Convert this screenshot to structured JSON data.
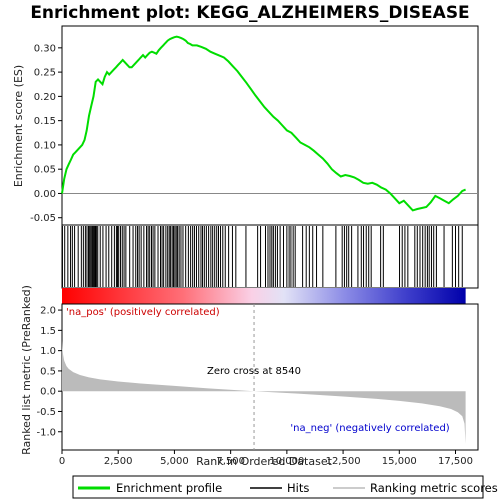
{
  "chart_data": {
    "type": "line",
    "title": "Enrichment plot: KEGG_ALZHEIMERS_DISEASE",
    "top_panel": {
      "ylabel": "Enrichment score (ES)",
      "ylim": [
        -0.065,
        0.345
      ],
      "yticks": [
        -0.05,
        0.0,
        0.05,
        0.1,
        0.15,
        0.2,
        0.25,
        0.3
      ],
      "ytick_labels": [
        "-0.05",
        "0.00",
        "0.05",
        "0.10",
        "0.15",
        "0.20",
        "0.25",
        "0.30"
      ],
      "series": [
        {
          "name": "Enrichment profile",
          "color": "#00dd00",
          "x": [
            0,
            100,
            200,
            300,
            400,
            500,
            600,
            700,
            800,
            900,
            1000,
            1100,
            1200,
            1300,
            1400,
            1500,
            1600,
            1700,
            1800,
            1900,
            2000,
            2100,
            2200,
            2300,
            2400,
            2500,
            2600,
            2700,
            2800,
            2900,
            3000,
            3100,
            3200,
            3300,
            3400,
            3500,
            3600,
            3700,
            3800,
            3900,
            4000,
            4100,
            4200,
            4300,
            4400,
            4500,
            4600,
            4700,
            4800,
            4900,
            5000,
            5100,
            5200,
            5300,
            5400,
            5500,
            5600,
            5700,
            5800,
            5900,
            6000,
            6200,
            6400,
            6600,
            6800,
            7000,
            7200,
            7400,
            7600,
            7800,
            8000,
            8200,
            8400,
            8600,
            8800,
            9000,
            9200,
            9400,
            9600,
            9800,
            10000,
            10200,
            10400,
            10600,
            10800,
            11000,
            11200,
            11400,
            11600,
            11800,
            12000,
            12200,
            12400,
            12600,
            12800,
            13000,
            13200,
            13400,
            13600,
            13800,
            14000,
            14200,
            14400,
            14600,
            14800,
            15000,
            15200,
            15400,
            15600,
            15800,
            16000,
            16200,
            16400,
            16600,
            16800,
            17000,
            17200,
            17400,
            17600,
            17800,
            17950
          ],
          "y": [
            0.0,
            0.03,
            0.05,
            0.06,
            0.07,
            0.08,
            0.085,
            0.09,
            0.095,
            0.1,
            0.11,
            0.13,
            0.16,
            0.18,
            0.2,
            0.23,
            0.235,
            0.23,
            0.225,
            0.24,
            0.25,
            0.245,
            0.25,
            0.255,
            0.26,
            0.265,
            0.27,
            0.275,
            0.27,
            0.265,
            0.26,
            0.26,
            0.265,
            0.27,
            0.275,
            0.28,
            0.285,
            0.28,
            0.285,
            0.29,
            0.292,
            0.29,
            0.288,
            0.295,
            0.3,
            0.305,
            0.31,
            0.315,
            0.318,
            0.32,
            0.322,
            0.323,
            0.322,
            0.32,
            0.318,
            0.315,
            0.31,
            0.308,
            0.305,
            0.305,
            0.305,
            0.302,
            0.298,
            0.292,
            0.288,
            0.284,
            0.28,
            0.272,
            0.262,
            0.252,
            0.24,
            0.228,
            0.215,
            0.202,
            0.19,
            0.178,
            0.168,
            0.158,
            0.15,
            0.14,
            0.13,
            0.125,
            0.115,
            0.105,
            0.1,
            0.095,
            0.088,
            0.08,
            0.072,
            0.062,
            0.05,
            0.042,
            0.035,
            0.038,
            0.036,
            0.033,
            0.028,
            0.022,
            0.02,
            0.022,
            0.018,
            0.012,
            0.008,
            0.0,
            -0.01,
            -0.02,
            -0.015,
            -0.025,
            -0.035,
            -0.032,
            -0.03,
            -0.028,
            -0.018,
            -0.005,
            -0.01,
            -0.015,
            -0.02,
            -0.012,
            -0.005,
            0.005,
            0.008
          ]
        }
      ]
    },
    "bottom_panel": {
      "ylabel": "Ranked list metric (PreRanked)",
      "xlabel": "Rank in Ordered Dataset",
      "ylim": [
        -1.45,
        2.15
      ],
      "yticks": [
        -1.0,
        -0.5,
        0.0,
        0.5,
        1.0,
        1.5,
        2.0
      ],
      "ytick_labels": [
        "-1.0",
        "-0.5",
        "0.0",
        "0.5",
        "1.0",
        "1.5",
        "2.0"
      ],
      "metric_x": [
        0,
        20,
        50,
        100,
        200,
        300,
        500,
        800,
        1200,
        1700,
        2500,
        3500,
        5000,
        6500,
        8540,
        10500,
        12500,
        14000,
        15000,
        16000,
        16800,
        17300,
        17600,
        17800,
        17900,
        17950
      ],
      "metric_y": [
        1.25,
        1.05,
        0.9,
        0.75,
        0.62,
        0.55,
        0.47,
        0.4,
        0.34,
        0.29,
        0.24,
        0.19,
        0.13,
        0.07,
        0.0,
        -0.06,
        -0.13,
        -0.19,
        -0.24,
        -0.3,
        -0.37,
        -0.44,
        -0.52,
        -0.62,
        -0.8,
        -1.3
      ],
      "zero_cross_rank": 8540,
      "annotations": {
        "pos_label": "'na_pos' (positively correlated)",
        "neg_label": "'na_neg' (negatively correlated)",
        "zero_cross_label": "Zero cross at 8540"
      }
    },
    "xlim": [
      0,
      18500
    ],
    "xticks": [
      0,
      2500,
      5000,
      7500,
      10000,
      12500,
      15000,
      17500
    ],
    "xtick_labels": [
      "0",
      "2,500",
      "5,000",
      "7,500",
      "10,000",
      "12,500",
      "15,000",
      "17,500"
    ],
    "total_ranks": 17950,
    "hits": [
      20,
      120,
      260,
      380,
      460,
      560,
      720,
      860,
      950,
      1040,
      1110,
      1180,
      1230,
      1280,
      1330,
      1370,
      1410,
      1450,
      1490,
      1540,
      1590,
      1700,
      1820,
      1960,
      2080,
      2210,
      2330,
      2420,
      2470,
      2520,
      2600,
      2680,
      2760,
      2840,
      3010,
      3160,
      3280,
      3360,
      3430,
      3520,
      3640,
      3760,
      3830,
      3900,
      3980,
      4050,
      4130,
      4270,
      4380,
      4450,
      4520,
      4620,
      4700,
      4770,
      4830,
      4900,
      4960,
      5020,
      5080,
      5140,
      5210,
      5290,
      5380,
      5500,
      5620,
      5720,
      5810,
      5890,
      5980,
      6080,
      6180,
      6250,
      6330,
      6420,
      6520,
      6620,
      6700,
      6790,
      6880,
      6960,
      7050,
      7150,
      7260,
      7410,
      7580,
      7730,
      8180,
      8700,
      8830,
      9050,
      9160,
      9250,
      9330,
      9400,
      9490,
      9580,
      9700,
      9850,
      10000,
      10100,
      10180,
      10280,
      10370,
      10700,
      10860,
      11000,
      11150,
      11320,
      11600,
      12180,
      12460,
      12560,
      12660,
      12750,
      12880,
      13160,
      13310,
      13410,
      13530,
      13640,
      13750,
      14170,
      14290,
      15010,
      15130,
      15250,
      15380,
      15690,
      15800,
      15920,
      16040,
      16150,
      16250,
      16330,
      16430,
      16530,
      16650,
      16990,
      17360,
      17500,
      17640,
      17800
    ],
    "legend": {
      "items": [
        {
          "label": "Enrichment profile",
          "color": "#00dd00"
        },
        {
          "label": "Hits",
          "color": "#000000"
        },
        {
          "label": "Ranking metric scores",
          "color": "#bbbbbb"
        }
      ]
    }
  }
}
